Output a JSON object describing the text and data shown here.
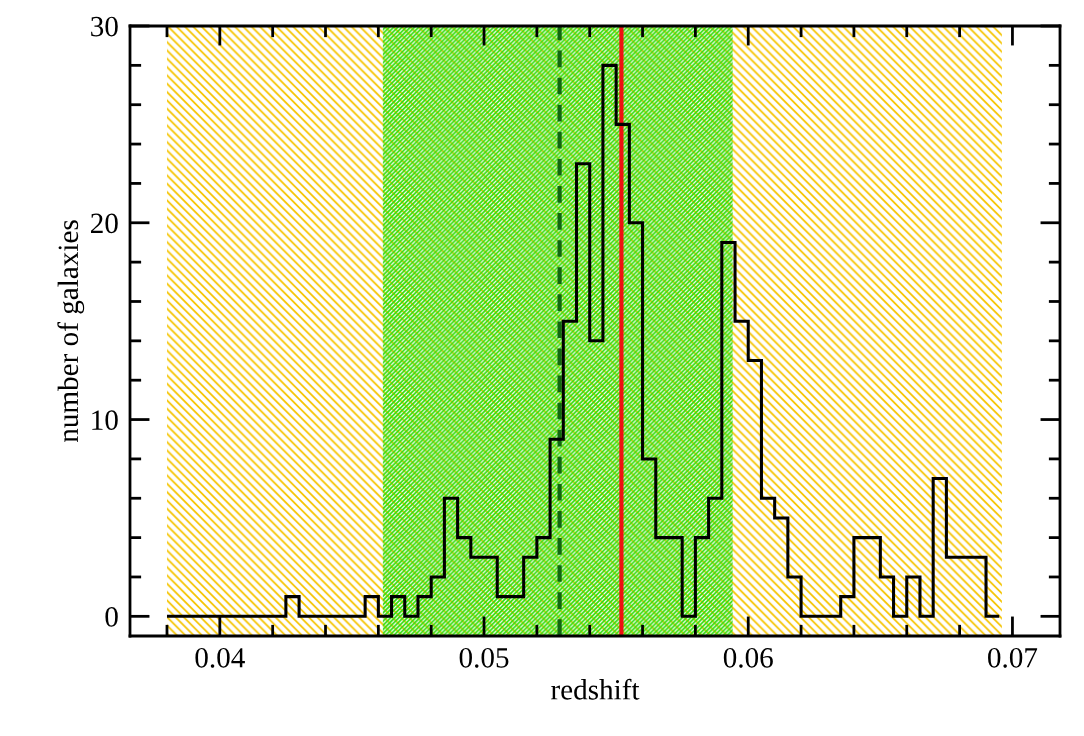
{
  "chart_data": {
    "type": "histogram",
    "xlabel": "redshift",
    "ylabel": "number of galaxies",
    "bins": [
      0.038,
      0.0385,
      0.039,
      0.0395,
      0.04,
      0.0405,
      0.041,
      0.0415,
      0.042,
      0.0425,
      0.043,
      0.0435,
      0.044,
      0.0445,
      0.045,
      0.0455,
      0.046,
      0.0465,
      0.047,
      0.0475,
      0.048,
      0.0485,
      0.049,
      0.0495,
      0.05,
      0.0505,
      0.051,
      0.0515,
      0.052,
      0.0525,
      0.053,
      0.0535,
      0.054,
      0.0545,
      0.055,
      0.0555,
      0.056,
      0.0565,
      0.057,
      0.0575,
      0.058,
      0.0585,
      0.059,
      0.0595,
      0.06,
      0.0605,
      0.061,
      0.0615,
      0.062,
      0.0625,
      0.063,
      0.0635,
      0.064,
      0.0645,
      0.065,
      0.0655,
      0.066,
      0.0665,
      0.067,
      0.0675,
      0.068,
      0.0685,
      0.069,
      0.0695
    ],
    "values": [
      0,
      0,
      0,
      0,
      0,
      0,
      0,
      0,
      0,
      1,
      0,
      0,
      0,
      0,
      0,
      1,
      0,
      1,
      0,
      1,
      2,
      6,
      4,
      3,
      3,
      1,
      1,
      3,
      4,
      9,
      15,
      23,
      14,
      28,
      25,
      20,
      8,
      4,
      4,
      0,
      4,
      6,
      19,
      15,
      13,
      6,
      5,
      2,
      0,
      0,
      0,
      1,
      4,
      4,
      2,
      0,
      2,
      0,
      7,
      3,
      3,
      3,
      0
    ],
    "color": "#000000",
    "xlim": [
      0.0366,
      0.0718
    ],
    "ylim": [
      -1,
      30
    ],
    "xticks": [
      {
        "value": 0.038,
        "label": null
      },
      0.04,
      {
        "value": 0.042,
        "label": null
      },
      {
        "value": 0.044,
        "label": null
      },
      {
        "value": 0.046,
        "label": null
      },
      {
        "value": 0.048,
        "label": null
      },
      0.05,
      {
        "value": 0.052,
        "label": null
      },
      {
        "value": 0.054,
        "label": null
      },
      {
        "value": 0.056,
        "label": null
      },
      {
        "value": 0.058,
        "label": null
      },
      0.06,
      {
        "value": 0.062,
        "label": null
      },
      {
        "value": 0.064,
        "label": null
      },
      {
        "value": 0.066,
        "label": null
      },
      {
        "value": 0.068,
        "label": null
      },
      0.07
    ],
    "yticks": [
      0,
      {
        "value": 2,
        "label": null
      },
      {
        "value": 4,
        "label": null
      },
      {
        "value": 6,
        "label": null
      },
      {
        "value": 8,
        "label": null
      },
      10,
      {
        "value": 12,
        "label": null
      },
      {
        "value": 14,
        "label": null
      },
      {
        "value": 16,
        "label": null
      },
      {
        "value": 18,
        "label": null
      },
      20,
      {
        "value": 22,
        "label": null
      },
      {
        "value": 24,
        "label": null
      },
      {
        "value": 26,
        "label": null
      },
      {
        "value": 28,
        "label": null
      },
      30
    ],
    "bands": [
      {
        "axis": "x",
        "from": 0.038,
        "to": 0.0696,
        "color": "#f5c400"
      },
      {
        "axis": "x",
        "from": 0.04617,
        "to": 0.05941,
        "color": "#33dd11"
      }
    ],
    "ref_lines": [
      {
        "axis": "x",
        "value": 0.05286,
        "color": "#116611",
        "line_style": "dashed"
      },
      {
        "axis": "x",
        "value": 0.0552,
        "color": "#ee1111",
        "line_style": "solid"
      }
    ],
    "grid": false,
    "legend": false
  }
}
